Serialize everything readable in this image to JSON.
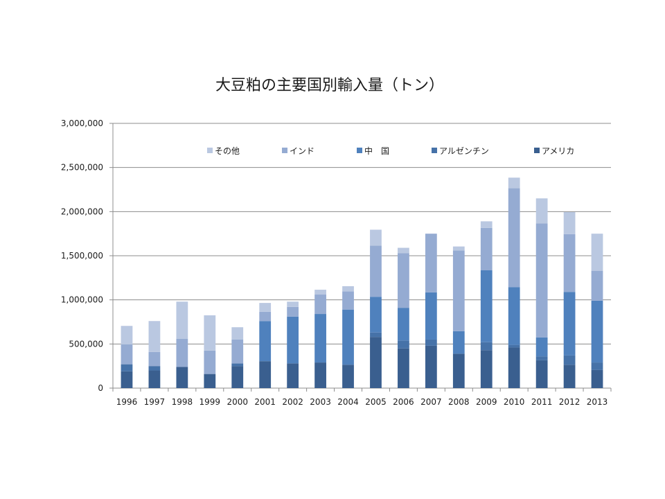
{
  "chart_data": {
    "type": "bar",
    "stacked": true,
    "title": "大豆粕の主要国別輸入量（トン）",
    "xlabel": "",
    "ylabel": "",
    "ylim": [
      0,
      3000000
    ],
    "y_ticks": [
      0,
      500000,
      1000000,
      1500000,
      2000000,
      2500000,
      3000000
    ],
    "y_tick_labels": [
      "0",
      "500,000",
      "1,000,000",
      "1,500,000",
      "2,000,000",
      "2,500,000",
      "3,000,000"
    ],
    "grid": true,
    "legend_position": "top",
    "categories": [
      "1996",
      "1997",
      "1998",
      "1999",
      "2000",
      "2001",
      "2002",
      "2003",
      "2004",
      "2005",
      "2006",
      "2007",
      "2008",
      "2009",
      "2010",
      "2011",
      "2012",
      "2013"
    ],
    "series": [
      {
        "name": "アメリカ",
        "color": "#3a5f8f",
        "values": [
          190000,
          200000,
          240000,
          160000,
          250000,
          305000,
          280000,
          290000,
          265000,
          580000,
          450000,
          480000,
          390000,
          430000,
          460000,
          315000,
          265000,
          205000
        ]
      },
      {
        "name": "アルゼンチン",
        "color": "#4672a8",
        "values": [
          80000,
          50000,
          0,
          0,
          30000,
          0,
          0,
          0,
          0,
          50000,
          90000,
          70000,
          0,
          90000,
          30000,
          45000,
          105000,
          85000
        ]
      },
      {
        "name": "中　国",
        "color": "#4f81bd",
        "values": [
          0,
          0,
          0,
          0,
          0,
          455000,
          530000,
          550000,
          625000,
          405000,
          370000,
          535000,
          255000,
          815000,
          655000,
          215000,
          720000,
          700000
        ]
      },
      {
        "name": "インド",
        "color": "#95abd2",
        "values": [
          225000,
          160000,
          320000,
          265000,
          270000,
          105000,
          110000,
          220000,
          205000,
          580000,
          620000,
          665000,
          915000,
          480000,
          1120000,
          1290000,
          655000,
          340000
        ]
      },
      {
        "name": "その他",
        "color": "#bac8e1",
        "values": [
          210000,
          350000,
          420000,
          400000,
          140000,
          100000,
          60000,
          55000,
          60000,
          180000,
          60000,
          0,
          45000,
          75000,
          120000,
          285000,
          250000,
          420000
        ]
      }
    ],
    "legend_order": [
      "その他",
      "インド",
      "中　国",
      "アルゼンチン",
      "アメリカ"
    ]
  }
}
